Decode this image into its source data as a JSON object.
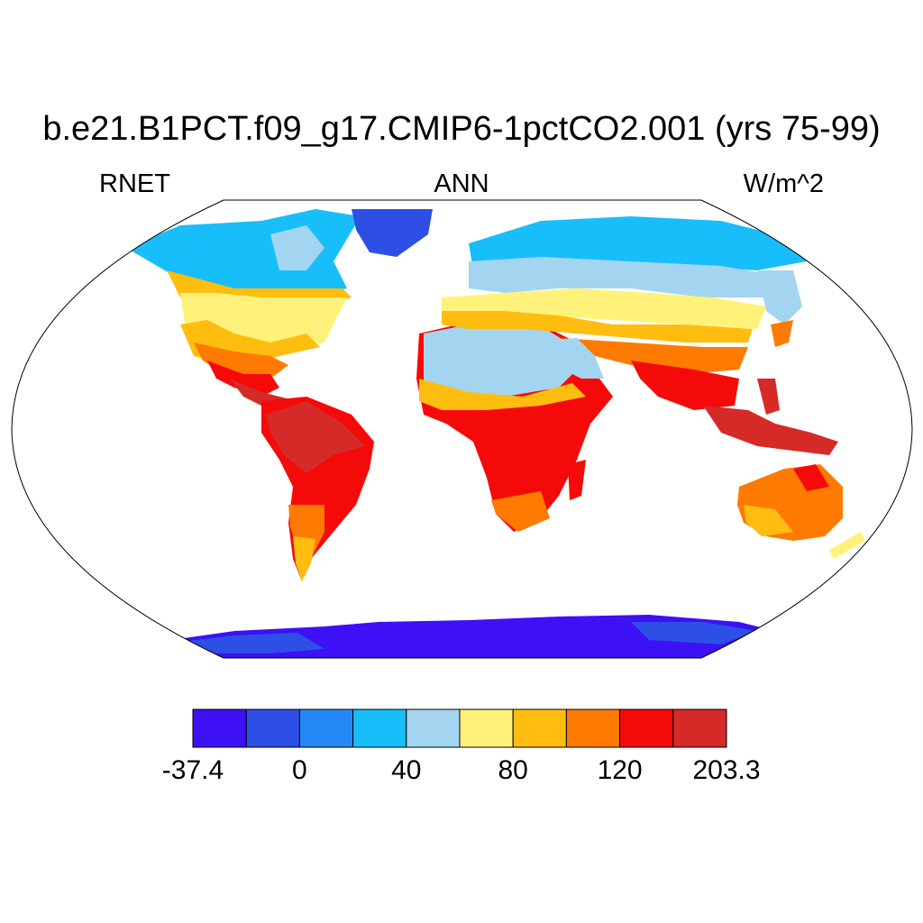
{
  "title": "b.e21.B1PCT.f09_g17.CMIP6-1pctCO2.001 (yrs 75-99)",
  "variable": "RNET",
  "season": "ANN",
  "units": "W/m^2",
  "colorbar": {
    "colors": [
      "#3d10f5",
      "#2d4fe6",
      "#2488f6",
      "#18befa",
      "#a3d5f0",
      "#fff27a",
      "#ffbd10",
      "#ff7a00",
      "#f50a0a",
      "#d52a28"
    ],
    "labels": [
      "-37.4",
      "0",
      "40",
      "80",
      "120",
      "203.3"
    ]
  }
}
